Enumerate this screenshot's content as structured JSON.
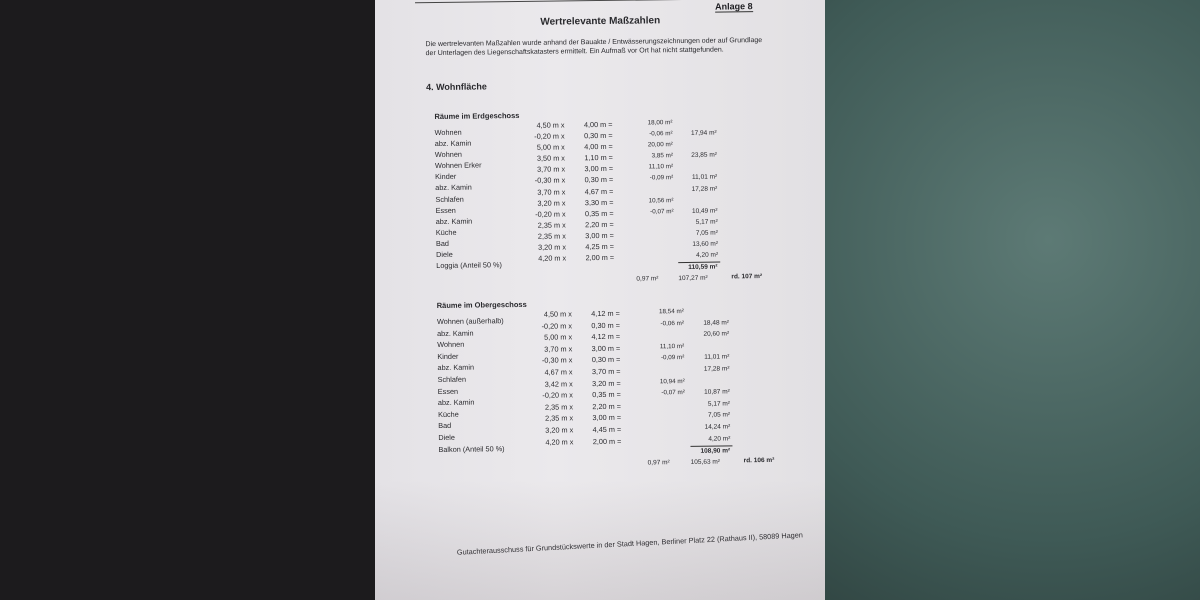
{
  "header": {
    "attachment": "Anlage 8",
    "title": "Wertrelevante Maßzahlen",
    "intro": "Die wertrelevanten Maßzahlen wurde anhand der Bauakte / Entwässerungszeichnungen oder auf Grundlage der Unterlagen des Liegenschaftskatasters ermittelt. Ein Aufmaß vor Ort hat nicht stattgefunden."
  },
  "section_title": "4. Wohnfläche",
  "groups": [
    {
      "heading": "Räume im Erdgeschoss",
      "rows": [
        [
          "Wohnen",
          "4,50 m x",
          "4,00 m =",
          "18,00 m²",
          ""
        ],
        [
          "abz. Kamin",
          "-0,20 m x",
          "0,30 m =",
          "-0,06 m²",
          "17,94 m²"
        ],
        [
          "Wohnen",
          "5,00 m x",
          "4,00 m =",
          "20,00 m²",
          ""
        ],
        [
          "Wohnen  Erker",
          "3,50 m x",
          "1,10 m =",
          "3,85 m²",
          "23,85 m²"
        ],
        [
          "Kinder",
          "3,70 m x",
          "3,00 m =",
          "11,10 m²",
          ""
        ],
        [
          "abz. Kamin",
          "-0,30 m x",
          "0,30 m =",
          "-0,09 m²",
          "11,01 m²"
        ],
        [
          "Schlafen",
          "3,70 m x",
          "4,67 m =",
          "",
          "17,28 m²"
        ],
        [
          "Essen",
          "3,20 m x",
          "3,30 m =",
          "10,56 m²",
          ""
        ],
        [
          "abz. Kamin",
          "-0,20 m x",
          "0,35 m =",
          "-0,07 m²",
          "10,49 m²"
        ],
        [
          "Küche",
          "2,35 m x",
          "2,20 m =",
          "",
          "5,17 m²"
        ],
        [
          "Bad",
          "2,35 m x",
          "3,00 m =",
          "",
          "7,05 m²"
        ],
        [
          "Diele",
          "3,20 m x",
          "4,25 m =",
          "",
          "13,60 m²"
        ],
        [
          "Loggia (Anteil 50 %)",
          "4,20 m x",
          "2,00 m =",
          "",
          "4,20 m²"
        ]
      ],
      "total": "110,59 m²",
      "deduction": "0,97 m²",
      "net": "107,27 m²",
      "rounded": "rd. 107 m²"
    },
    {
      "heading": "Räume im Obergeschoss",
      "rows": [
        [
          "Wohnen (außerhalb)",
          "4,50 m x",
          "4,12 m =",
          "18,54 m²",
          ""
        ],
        [
          "abz. Kamin",
          "-0,20 m x",
          "0,30 m =",
          "-0,06 m²",
          "18,48 m²"
        ],
        [
          "Wohnen",
          "5,00 m x",
          "4,12 m =",
          "",
          "20,60 m²"
        ],
        [
          "Kinder",
          "3,70 m x",
          "3,00 m =",
          "11,10 m²",
          ""
        ],
        [
          "abz. Kamin",
          "-0,30 m x",
          "0,30 m =",
          "-0,09 m²",
          "11,01 m²"
        ],
        [
          "Schlafen",
          "4,67 m x",
          "3,70 m =",
          "",
          "17,28 m²"
        ],
        [
          "Essen",
          "3,42 m x",
          "3,20 m =",
          "10,94 m²",
          ""
        ],
        [
          "abz. Kamin",
          "-0,20 m x",
          "0,35 m =",
          "-0,07 m²",
          "10,87 m²"
        ],
        [
          "Küche",
          "2,35 m x",
          "2,20 m =",
          "",
          "5,17 m²"
        ],
        [
          "Bad",
          "2,35 m x",
          "3,00 m =",
          "",
          "7,05 m²"
        ],
        [
          "Diele",
          "3,20 m x",
          "4,45 m =",
          "",
          "14,24 m²"
        ],
        [
          "Balkon (Anteil 50 %)",
          "4,20 m x",
          "2,00 m =",
          "",
          "4,20 m²"
        ]
      ],
      "total": "108,90 m²",
      "deduction": "0,97 m²",
      "net": "105,63 m²",
      "rounded": "rd. 106 m²"
    }
  ],
  "footer": "Gutachterausschuss für Grundstückswerte in der Stadt Hagen, Berliner Platz 22 (Rathaus II), 58089 Hagen"
}
